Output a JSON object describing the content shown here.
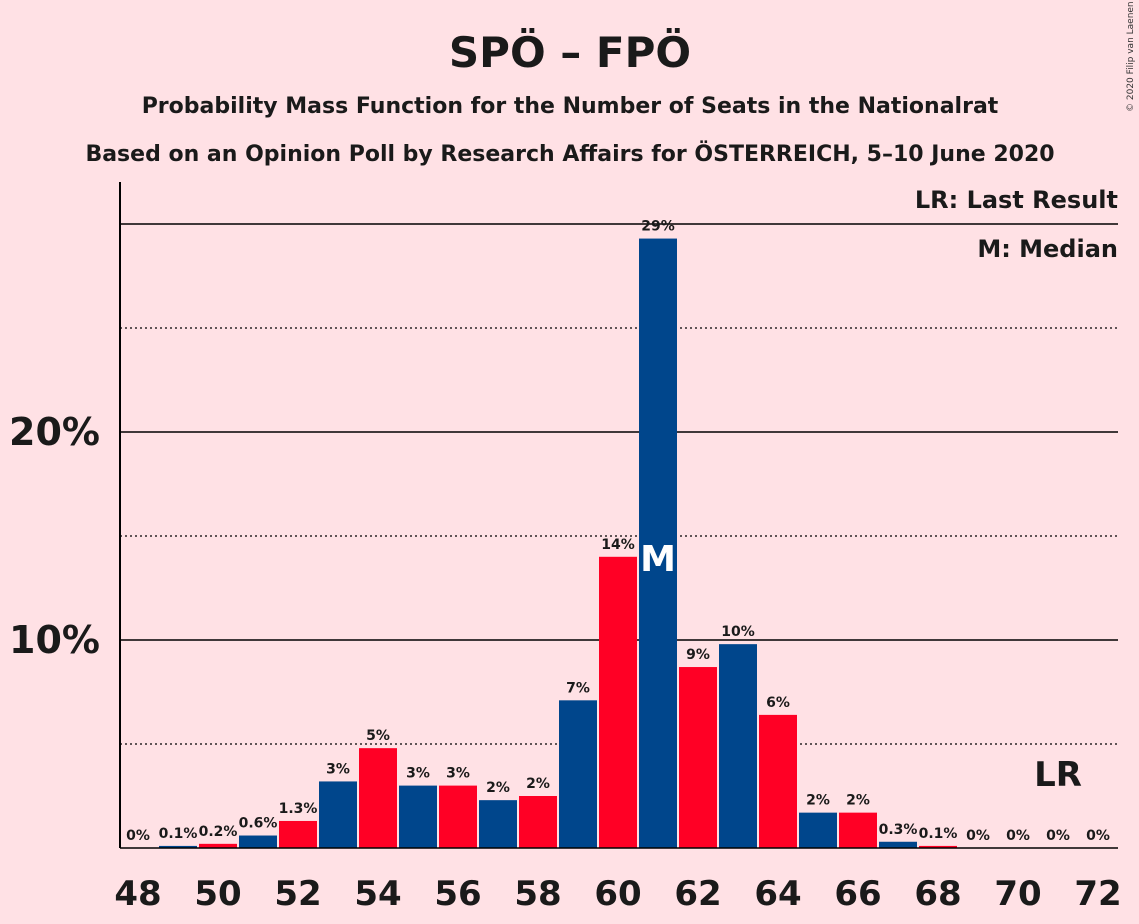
{
  "chart_data": {
    "type": "bar",
    "title": "SPÖ – FPÖ",
    "subtitle": "Probability Mass Function for the Number of Seats in the Nationalrat",
    "subtitle2": "Based on an Opinion Poll by Research Affairs for ÖSTERREICH, 5–10 June 2020",
    "copyright": "© 2020 Filip van Laenen",
    "legend": {
      "lr": "LR: Last Result",
      "m": "M: Median",
      "position": "top-right"
    },
    "x": [
      48,
      49,
      50,
      51,
      52,
      53,
      54,
      55,
      56,
      57,
      58,
      59,
      60,
      61,
      62,
      63,
      64,
      65,
      66,
      67,
      68,
      69,
      70,
      71,
      72
    ],
    "values": [
      0,
      0.1,
      0.2,
      0.6,
      1.3,
      3.2,
      4.8,
      3.0,
      3.0,
      2.3,
      2.5,
      7.1,
      14.0,
      29.3,
      8.7,
      9.8,
      6.4,
      1.7,
      1.7,
      0.3,
      0.1,
      0,
      0,
      0,
      0
    ],
    "labels": [
      "0%",
      "0.1%",
      "0.2%",
      "0.6%",
      "1.3%",
      "3%",
      "5%",
      "3%",
      "3%",
      "2%",
      "2%",
      "7%",
      "14%",
      "29%",
      "9%",
      "10%",
      "6%",
      "2%",
      "2%",
      "0.3%",
      "0.1%",
      "0%",
      "0%",
      "0%",
      "0%"
    ],
    "x_ticks": [
      "48",
      "50",
      "52",
      "54",
      "56",
      "58",
      "60",
      "62",
      "64",
      "66",
      "68",
      "70",
      "72"
    ],
    "y_ticks": [
      "10%",
      "20%"
    ],
    "ylim": [
      0,
      30
    ],
    "median": 61,
    "median_label": "M",
    "last_result": 71,
    "last_result_label": "LR",
    "colors": {
      "blue": "#00468C",
      "red": "#FF0025",
      "background": "#FFE1E5"
    }
  }
}
